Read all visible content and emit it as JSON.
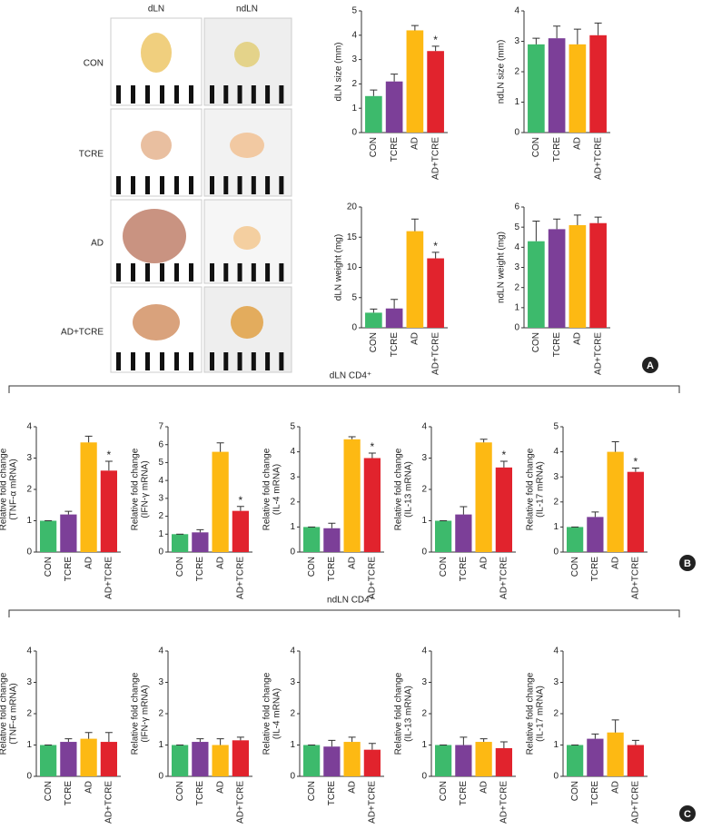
{
  "photo_panel": {
    "columns": [
      "dLN",
      "ndLN"
    ],
    "rows": [
      "CON",
      "TCRE",
      "AD",
      "AD+TCRE"
    ]
  },
  "sections": [
    "dLN CD4⁺",
    "ndLN CD4⁺"
  ],
  "panel_labels": [
    "A",
    "B",
    "C"
  ],
  "chart_data": [
    {
      "type": "bar",
      "ylabel": [
        "dLN size (mm)"
      ],
      "categories": [
        "CON",
        "TCRE",
        "AD",
        "AD+TCRE"
      ],
      "colors": [
        "#3dba6c",
        "#7c3f98",
        "#fdb913",
        "#e1232d"
      ],
      "values": [
        1.5,
        2.1,
        4.2,
        3.35
      ],
      "errors": [
        0.25,
        0.3,
        0.2,
        0.2
      ],
      "ylim": [
        0,
        5
      ],
      "yticks": [
        0,
        1,
        2,
        3,
        4,
        5
      ],
      "annotations": [
        {
          "text": "*",
          "category": "AD+TCRE"
        }
      ]
    },
    {
      "type": "bar",
      "ylabel": [
        "ndLN size (mm)"
      ],
      "categories": [
        "CON",
        "TCRE",
        "AD",
        "AD+TCRE"
      ],
      "colors": [
        "#3dba6c",
        "#7c3f98",
        "#fdb913",
        "#e1232d"
      ],
      "values": [
        2.9,
        3.1,
        2.9,
        3.2
      ],
      "errors": [
        0.2,
        0.4,
        0.5,
        0.4
      ],
      "ylim": [
        0,
        4
      ],
      "yticks": [
        0,
        1,
        2,
        3,
        4
      ],
      "annotations": []
    },
    {
      "type": "bar",
      "ylabel": [
        "dLN weight (mg)"
      ],
      "categories": [
        "CON",
        "TCRE",
        "AD",
        "AD+TCRE"
      ],
      "colors": [
        "#3dba6c",
        "#7c3f98",
        "#fdb913",
        "#e1232d"
      ],
      "values": [
        2.5,
        3.2,
        16,
        11.5
      ],
      "errors": [
        0.6,
        1.5,
        2,
        1
      ],
      "ylim": [
        0,
        20
      ],
      "yticks": [
        0,
        5,
        10,
        15,
        20
      ],
      "annotations": [
        {
          "text": "*",
          "category": "AD+TCRE"
        }
      ]
    },
    {
      "type": "bar",
      "ylabel": [
        "ndLN weight (mg)"
      ],
      "categories": [
        "CON",
        "TCRE",
        "AD",
        "AD+TCRE"
      ],
      "colors": [
        "#3dba6c",
        "#7c3f98",
        "#fdb913",
        "#e1232d"
      ],
      "values": [
        4.3,
        4.9,
        5.1,
        5.2
      ],
      "errors": [
        1,
        0.5,
        0.5,
        0.3
      ],
      "ylim": [
        0,
        6
      ],
      "yticks": [
        0,
        1,
        2,
        3,
        4,
        5,
        6
      ],
      "annotations": []
    },
    {
      "type": "bar",
      "ylabel": [
        "Relative fold change",
        "(TNF-α mRNA)"
      ],
      "categories": [
        "CON",
        "TCRE",
        "AD",
        "AD+TCRE"
      ],
      "colors": [
        "#3dba6c",
        "#7c3f98",
        "#fdb913",
        "#e1232d"
      ],
      "values": [
        1,
        1.2,
        3.5,
        2.6
      ],
      "errors": [
        0,
        0.1,
        0.2,
        0.3
      ],
      "ylim": [
        0,
        4
      ],
      "yticks": [
        0,
        1,
        2,
        3,
        4
      ],
      "annotations": [
        {
          "text": "*",
          "category": "AD+TCRE"
        }
      ]
    },
    {
      "type": "bar",
      "ylabel": [
        "Relative fold change",
        "(IFN-γ mRNA)"
      ],
      "categories": [
        "CON",
        "TCRE",
        "AD",
        "AD+TCRE"
      ],
      "colors": [
        "#3dba6c",
        "#7c3f98",
        "#fdb913",
        "#e1232d"
      ],
      "values": [
        1,
        1.1,
        5.6,
        2.3
      ],
      "errors": [
        0,
        0.15,
        0.5,
        0.25
      ],
      "ylim": [
        0,
        7
      ],
      "yticks": [
        0,
        1,
        2,
        3,
        4,
        5,
        6,
        7
      ],
      "annotations": [
        {
          "text": "*",
          "category": "AD+TCRE"
        }
      ]
    },
    {
      "type": "bar",
      "ylabel": [
        "Relative fold change",
        "(IL-4 mRNA)"
      ],
      "categories": [
        "CON",
        "TCRE",
        "AD",
        "AD+TCRE"
      ],
      "colors": [
        "#3dba6c",
        "#7c3f98",
        "#fdb913",
        "#e1232d"
      ],
      "values": [
        1,
        0.95,
        4.5,
        3.75
      ],
      "errors": [
        0,
        0.2,
        0.1,
        0.2
      ],
      "ylim": [
        0,
        5
      ],
      "yticks": [
        0,
        1,
        2,
        3,
        4,
        5
      ],
      "annotations": [
        {
          "text": "*",
          "category": "AD+TCRE"
        }
      ]
    },
    {
      "type": "bar",
      "ylabel": [
        "Relative fold change",
        "(IL-13 mRNA)"
      ],
      "categories": [
        "CON",
        "TCRE",
        "AD",
        "AD+TCRE"
      ],
      "colors": [
        "#3dba6c",
        "#7c3f98",
        "#fdb913",
        "#e1232d"
      ],
      "values": [
        1,
        1.2,
        3.5,
        2.7
      ],
      "errors": [
        0,
        0.25,
        0.1,
        0.2
      ],
      "ylim": [
        0,
        4
      ],
      "yticks": [
        0,
        1,
        2,
        3,
        4
      ],
      "annotations": [
        {
          "text": "*",
          "category": "AD+TCRE"
        }
      ]
    },
    {
      "type": "bar",
      "ylabel": [
        "Relative fold change",
        "(IL-17 mRNA)"
      ],
      "categories": [
        "CON",
        "TCRE",
        "AD",
        "AD+TCRE"
      ],
      "colors": [
        "#3dba6c",
        "#7c3f98",
        "#fdb913",
        "#e1232d"
      ],
      "values": [
        1,
        1.4,
        4,
        3.2
      ],
      "errors": [
        0,
        0.2,
        0.4,
        0.15
      ],
      "ylim": [
        0,
        5
      ],
      "yticks": [
        0,
        1,
        2,
        3,
        4,
        5
      ],
      "annotations": [
        {
          "text": "*",
          "category": "AD+TCRE"
        }
      ]
    },
    {
      "type": "bar",
      "ylabel": [
        "Relative fold change",
        "(TNF-α mRNA)"
      ],
      "categories": [
        "CON",
        "TCRE",
        "AD",
        "AD+TCRE"
      ],
      "colors": [
        "#3dba6c",
        "#7c3f98",
        "#fdb913",
        "#e1232d"
      ],
      "values": [
        1,
        1.1,
        1.2,
        1.1
      ],
      "errors": [
        0,
        0.1,
        0.2,
        0.3
      ],
      "ylim": [
        0,
        4
      ],
      "yticks": [
        0,
        1,
        2,
        3,
        4
      ],
      "annotations": []
    },
    {
      "type": "bar",
      "ylabel": [
        "Relative fold change",
        "(IFN-γ mRNA)"
      ],
      "categories": [
        "CON",
        "TCRE",
        "AD",
        "AD+TCRE"
      ],
      "colors": [
        "#3dba6c",
        "#7c3f98",
        "#fdb913",
        "#e1232d"
      ],
      "values": [
        1,
        1.1,
        1.0,
        1.15
      ],
      "errors": [
        0,
        0.1,
        0.2,
        0.1
      ],
      "ylim": [
        0,
        4
      ],
      "yticks": [
        0,
        1,
        2,
        3,
        4
      ],
      "annotations": []
    },
    {
      "type": "bar",
      "ylabel": [
        "Relative fold change",
        "(IL-4 mRNA)"
      ],
      "categories": [
        "CON",
        "TCRE",
        "AD",
        "AD+TCRE"
      ],
      "colors": [
        "#3dba6c",
        "#7c3f98",
        "#fdb913",
        "#e1232d"
      ],
      "values": [
        1,
        0.95,
        1.1,
        0.85
      ],
      "errors": [
        0,
        0.2,
        0.15,
        0.2
      ],
      "ylim": [
        0,
        4
      ],
      "yticks": [
        0,
        1,
        2,
        3,
        4
      ],
      "annotations": []
    },
    {
      "type": "bar",
      "ylabel": [
        "Relative fold change",
        "(IL-13 mRNA)"
      ],
      "categories": [
        "CON",
        "TCRE",
        "AD",
        "AD+TCRE"
      ],
      "colors": [
        "#3dba6c",
        "#7c3f98",
        "#fdb913",
        "#e1232d"
      ],
      "values": [
        1,
        1.0,
        1.1,
        0.9
      ],
      "errors": [
        0,
        0.25,
        0.1,
        0.2
      ],
      "ylim": [
        0,
        4
      ],
      "yticks": [
        0,
        1,
        2,
        3,
        4
      ],
      "annotations": []
    },
    {
      "type": "bar",
      "ylabel": [
        "Relative fold change",
        "(IL-17 mRNA)"
      ],
      "categories": [
        "CON",
        "TCRE",
        "AD",
        "AD+TCRE"
      ],
      "colors": [
        "#3dba6c",
        "#7c3f98",
        "#fdb913",
        "#e1232d"
      ],
      "values": [
        1,
        1.2,
        1.4,
        1.0
      ],
      "errors": [
        0,
        0.15,
        0.4,
        0.15
      ],
      "ylim": [
        0,
        4
      ],
      "yticks": [
        0,
        1,
        2,
        3,
        4
      ],
      "annotations": []
    }
  ]
}
